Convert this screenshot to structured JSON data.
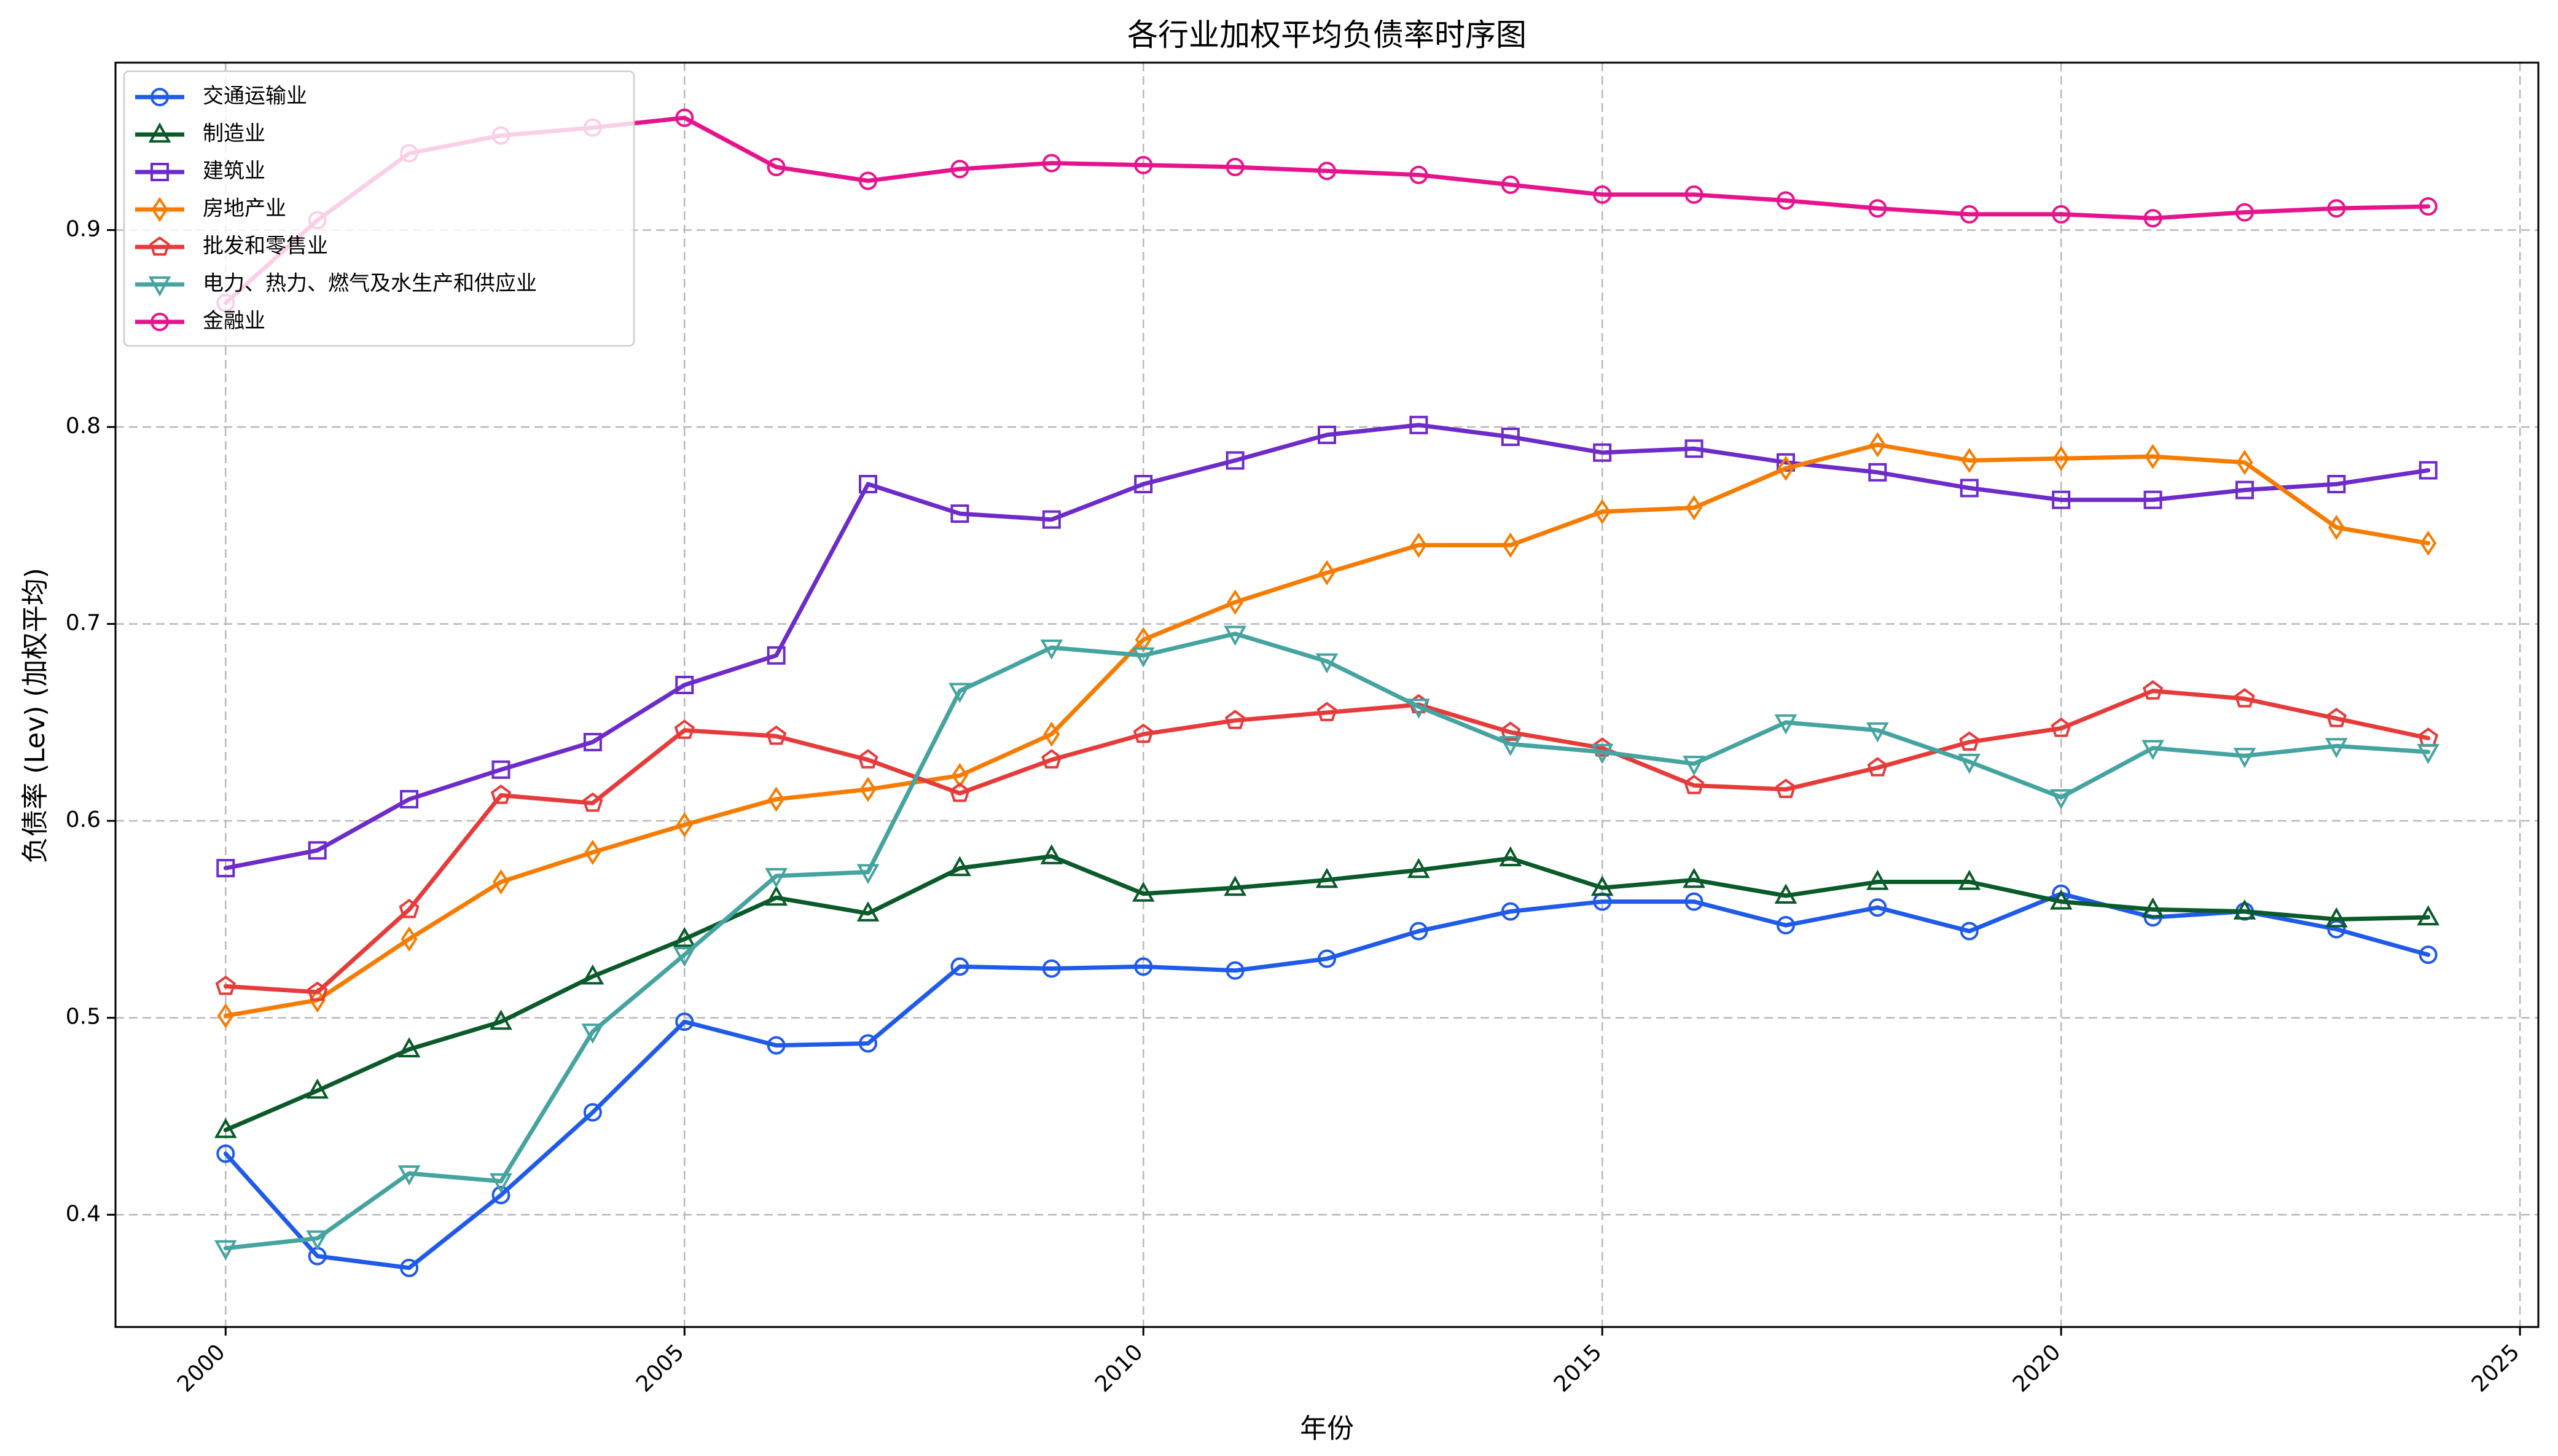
{
  "chart_data": {
    "type": "line",
    "title": "各行业加权平均负债率时序图",
    "xlabel": "年份",
    "ylabel": "负债率 (Lev) (加权平均)",
    "xlim": [
      1998.8,
      2025.2
    ],
    "ylim": [
      0.343,
      0.985
    ],
    "xticks": [
      2000,
      2005,
      2010,
      2015,
      2020,
      2025
    ],
    "yticks": [
      0.4,
      0.5,
      0.6,
      0.7,
      0.8,
      0.9
    ],
    "grid": true,
    "legend_position": "top-left",
    "x": [
      2000,
      2001,
      2002,
      2003,
      2004,
      2005,
      2006,
      2007,
      2008,
      2009,
      2010,
      2011,
      2012,
      2013,
      2014,
      2015,
      2016,
      2017,
      2018,
      2019,
      2020,
      2021,
      2022,
      2023,
      2024
    ],
    "series": [
      {
        "name": "交通运输业",
        "color": "#1f5ae8",
        "marker": "circle",
        "values": [
          0.431,
          0.379,
          0.373,
          0.41,
          0.452,
          0.498,
          0.486,
          0.487,
          0.526,
          0.525,
          0.526,
          0.524,
          0.53,
          0.544,
          0.554,
          0.559,
          0.559,
          0.547,
          0.556,
          0.544,
          0.563,
          0.551,
          0.554,
          0.545,
          0.532
        ]
      },
      {
        "name": "制造业",
        "color": "#0b5a2a",
        "marker": "triangle-up",
        "values": [
          0.443,
          0.463,
          0.484,
          0.498,
          0.521,
          0.54,
          0.561,
          0.553,
          0.576,
          0.582,
          0.563,
          0.566,
          0.57,
          0.575,
          0.581,
          0.566,
          0.57,
          0.562,
          0.569,
          0.569,
          0.559,
          0.555,
          0.554,
          0.55,
          0.551
        ]
      },
      {
        "name": "建筑业",
        "color": "#6d2cc8",
        "marker": "square",
        "values": [
          0.576,
          0.585,
          0.611,
          0.626,
          0.64,
          0.669,
          0.684,
          0.771,
          0.756,
          0.753,
          0.771,
          0.783,
          0.796,
          0.801,
          0.795,
          0.787,
          0.789,
          0.782,
          0.777,
          0.769,
          0.763,
          0.763,
          0.768,
          0.771,
          0.778
        ]
      },
      {
        "name": "房地产业",
        "color": "#f57c00",
        "marker": "diamond",
        "values": [
          0.501,
          0.509,
          0.54,
          0.569,
          0.584,
          0.598,
          0.611,
          0.616,
          0.623,
          0.644,
          0.692,
          0.711,
          0.726,
          0.74,
          0.74,
          0.757,
          0.759,
          0.779,
          0.791,
          0.783,
          0.784,
          0.785,
          0.782,
          0.749,
          0.741
        ]
      },
      {
        "name": "批发和零售业",
        "color": "#e63b3b",
        "marker": "pentagon",
        "values": [
          0.516,
          0.513,
          0.555,
          0.613,
          0.609,
          0.646,
          0.643,
          0.631,
          0.614,
          0.631,
          0.644,
          0.651,
          0.655,
          0.659,
          0.645,
          0.637,
          0.618,
          0.616,
          0.627,
          0.64,
          0.647,
          0.666,
          0.662,
          0.652,
          0.642
        ]
      },
      {
        "name": "电力、热力、燃气及水生产和供应业",
        "color": "#45a3a0",
        "marker": "triangle-down",
        "values": [
          0.383,
          0.388,
          0.421,
          0.417,
          0.493,
          0.532,
          0.572,
          0.574,
          0.666,
          0.688,
          0.684,
          0.695,
          0.681,
          0.658,
          0.639,
          0.635,
          0.629,
          0.65,
          0.646,
          0.63,
          0.612,
          0.637,
          0.633,
          0.638,
          0.635
        ]
      },
      {
        "name": "金融业",
        "color": "#e6148c",
        "marker": "circle",
        "values": [
          0.863,
          0.905,
          0.939,
          0.948,
          0.952,
          0.957,
          0.932,
          0.925,
          0.931,
          0.934,
          0.933,
          0.932,
          0.93,
          0.928,
          0.923,
          0.918,
          0.918,
          0.915,
          0.911,
          0.908,
          0.908,
          0.906,
          0.909,
          0.911,
          0.912
        ]
      }
    ]
  }
}
